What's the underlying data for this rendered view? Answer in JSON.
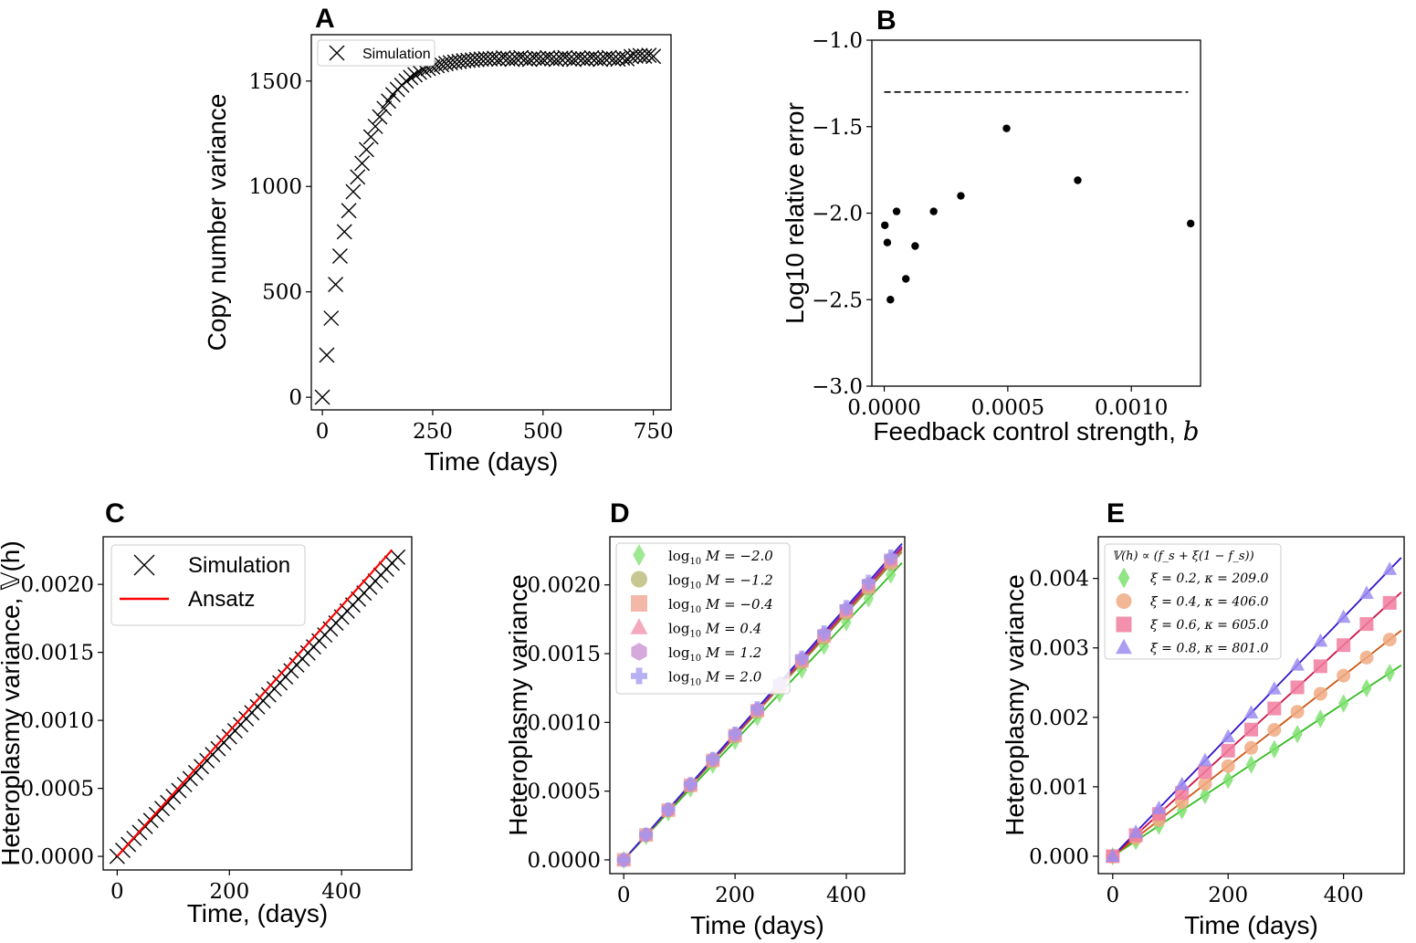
{
  "figure": {
    "panel_letters": [
      "A",
      "B",
      "C",
      "D",
      "E"
    ]
  },
  "chart_data": [
    {
      "id": "A",
      "type": "scatter",
      "title": "",
      "xlabel": "Time (days)",
      "ylabel": "Copy number variance",
      "xlim": [
        -25,
        790
      ],
      "ylim": [
        -60,
        1720
      ],
      "xticks": [
        0,
        250,
        500,
        750
      ],
      "yticks": [
        0,
        500,
        1000,
        1500
      ],
      "grid": false,
      "legend": {
        "position": "top-left",
        "entries": [
          "Simulation"
        ]
      },
      "series": [
        {
          "name": "Simulation",
          "marker": "x",
          "color": "#000000",
          "x": [
            0,
            10,
            20,
            30,
            40,
            50,
            60,
            70,
            80,
            90,
            100,
            110,
            120,
            130,
            140,
            150,
            160,
            170,
            180,
            190,
            200,
            210,
            220,
            230,
            240,
            250,
            260,
            270,
            280,
            290,
            300,
            310,
            320,
            330,
            340,
            350,
            360,
            370,
            380,
            390,
            400,
            410,
            420,
            430,
            440,
            450,
            460,
            470,
            480,
            490,
            500,
            510,
            520,
            530,
            540,
            550,
            560,
            570,
            580,
            590,
            600,
            610,
            620,
            630,
            640,
            650,
            660,
            670,
            680,
            690,
            700,
            710,
            720,
            730,
            740,
            750
          ],
          "y": [
            0,
            200,
            375,
            535,
            670,
            785,
            885,
            975,
            1045,
            1110,
            1175,
            1235,
            1285,
            1330,
            1370,
            1405,
            1435,
            1460,
            1480,
            1500,
            1517,
            1530,
            1542,
            1552,
            1560,
            1567,
            1573,
            1578,
            1583,
            1587,
            1590,
            1593,
            1596,
            1598,
            1600,
            1602,
            1604,
            1606,
            1605,
            1608,
            1604,
            1610,
            1606,
            1603,
            1607,
            1611,
            1605,
            1603,
            1609,
            1607,
            1604,
            1610,
            1606,
            1603,
            1608,
            1611,
            1605,
            1603,
            1609,
            1606,
            1604,
            1610,
            1607,
            1603,
            1608,
            1611,
            1605,
            1604,
            1609,
            1606,
            1616,
            1619,
            1621,
            1618,
            1622,
            1617
          ]
        }
      ]
    },
    {
      "id": "B",
      "type": "scatter",
      "title": "",
      "xlabel": "Feedback control strength, b",
      "ylabel": "Log10 relative error",
      "xlim": [
        -5e-05,
        0.00128
      ],
      "ylim": [
        -3.0,
        -1.0
      ],
      "xticks": [
        0.0,
        0.0005,
        0.001
      ],
      "xtick_labels": [
        "0.0000",
        "0.0005",
        "0.0010"
      ],
      "yticks": [
        -3.0,
        -2.5,
        -2.0,
        -1.5,
        -1.0
      ],
      "ytick_labels": [
        "−3.0",
        "−2.5",
        "−2.0",
        "−1.5",
        "−1.0"
      ],
      "grid": false,
      "series": [
        {
          "name": "relative error",
          "marker": "dot",
          "color": "#000000",
          "x": [
            2.5e-06,
            1.25e-05,
            2.5e-05,
            5e-05,
            8.75e-05,
            0.000125,
            0.0002,
            0.00031,
            0.000495,
            0.000783,
            0.00124
          ],
          "y": [
            -2.07,
            -2.17,
            -2.5,
            -1.99,
            -2.38,
            -2.19,
            -1.99,
            -1.9,
            -1.51,
            -1.81,
            -2.06
          ]
        },
        {
          "name": "threshold",
          "line": "dashed",
          "color": "#000000",
          "x": [
            0.0,
            0.00123
          ],
          "y": [
            -1.3,
            -1.3
          ]
        }
      ]
    },
    {
      "id": "C",
      "type": "line",
      "title": "",
      "xlabel": "Time, (days)",
      "ylabel": "Heteroplasmy variance, 𝕍(h)",
      "xlim": [
        -25,
        525
      ],
      "ylim": [
        -0.0001,
        0.00235
      ],
      "xticks": [
        0,
        200,
        400
      ],
      "yticks": [
        0.0,
        0.0005,
        0.001,
        0.0015,
        0.002
      ],
      "ytick_labels": [
        "0.0000",
        "0.0005",
        "0.0010",
        "0.0015",
        "0.0020"
      ],
      "grid": false,
      "legend": {
        "position": "top-left",
        "entries": [
          "Simulation",
          "Ansatz"
        ]
      },
      "series": [
        {
          "name": "Simulation",
          "marker": "x",
          "color": "#000000",
          "x_start": 0,
          "x_step": 10,
          "count": 51,
          "slope": 4.4e-06
        },
        {
          "name": "Ansatz",
          "line": "solid",
          "color": "#ff0000",
          "x": [
            0,
            490
          ],
          "y": [
            0.0,
            0.002254
          ]
        }
      ]
    },
    {
      "id": "D",
      "type": "scatter",
      "title": "",
      "xlabel": "Time (days)",
      "ylabel": "Heteroplasmy variance",
      "xlim": [
        -25,
        505
      ],
      "ylim": [
        -0.0001,
        0.00235
      ],
      "xticks": [
        0,
        200,
        400
      ],
      "yticks": [
        0.0,
        0.0005,
        0.001,
        0.0015,
        0.002
      ],
      "ytick_labels": [
        "0.0000",
        "0.0005",
        "0.0010",
        "0.0015",
        "0.0020"
      ],
      "grid": false,
      "legend": {
        "position": "top-left"
      },
      "x": [
        0,
        40,
        80,
        120,
        160,
        200,
        240,
        280,
        320,
        360,
        400,
        440,
        480
      ],
      "series": [
        {
          "name": "log10 M = −2.0",
          "label_value": "−2.0",
          "marker": "diamond",
          "color": "#7ee06e",
          "line_color": "#33bb22",
          "slope": 4.32e-06
        },
        {
          "name": "log10 M = −1.2",
          "label_value": "−1.2",
          "marker": "circle",
          "color": "#b4b46e",
          "line_color": "#8a8a33",
          "slope": 4.48e-06
        },
        {
          "name": "log10 M = −0.4",
          "label_value": "−0.4",
          "marker": "square",
          "color": "#f0a08c",
          "line_color": "#d94a2a",
          "slope": 4.52e-06
        },
        {
          "name": "log10 M = 0.4",
          "label_value": "0.4",
          "marker": "triangle",
          "color": "#f08caa",
          "line_color": "#cc2255",
          "slope": 4.54e-06
        },
        {
          "name": "log10 M = 1.2",
          "label_value": "1.2",
          "marker": "hexagon",
          "color": "#c88cd2",
          "line_color": "#9933aa",
          "slope": 4.56e-06
        },
        {
          "name": "log10 M = 2.0",
          "label_value": "2.0",
          "marker": "plus",
          "color": "#a096f0",
          "line_color": "#3322cc",
          "slope": 4.6e-06
        }
      ]
    },
    {
      "id": "E",
      "type": "scatter",
      "title": "",
      "xlabel": "Time (days)",
      "ylabel": "Heteroplasmy variance",
      "xlim": [
        -25,
        505
      ],
      "ylim": [
        -0.00025,
        0.0046
      ],
      "xticks": [
        0,
        200,
        400
      ],
      "yticks": [
        0.0,
        0.001,
        0.002,
        0.003,
        0.004
      ],
      "ytick_labels": [
        "0.000",
        "0.001",
        "0.002",
        "0.003",
        "0.004"
      ],
      "grid": false,
      "legend": {
        "position": "top-left",
        "title": "𝕍(h) ∝ (f_s + ξ(1 − f_s))"
      },
      "x": [
        0,
        40,
        80,
        120,
        160,
        200,
        240,
        280,
        320,
        360,
        400,
        440,
        480
      ],
      "series": [
        {
          "name": "ξ = 0.2, κ = 209.0",
          "marker": "diamond",
          "color": "#7ee06e",
          "line_color": "#33bb22",
          "slope": 5.5e-06
        },
        {
          "name": "ξ = 0.4, κ = 406.0",
          "marker": "circle",
          "color": "#f0aa82",
          "line_color": "#cc5511",
          "slope": 6.5e-06
        },
        {
          "name": "ξ = 0.6, κ = 605.0",
          "marker": "square",
          "color": "#f07ca0",
          "line_color": "#cc1144",
          "slope": 7.6e-06
        },
        {
          "name": "ξ = 0.8, κ = 801.0",
          "marker": "triangle",
          "color": "#9c8cf0",
          "line_color": "#3311cc",
          "slope": 8.6e-06
        }
      ]
    }
  ]
}
